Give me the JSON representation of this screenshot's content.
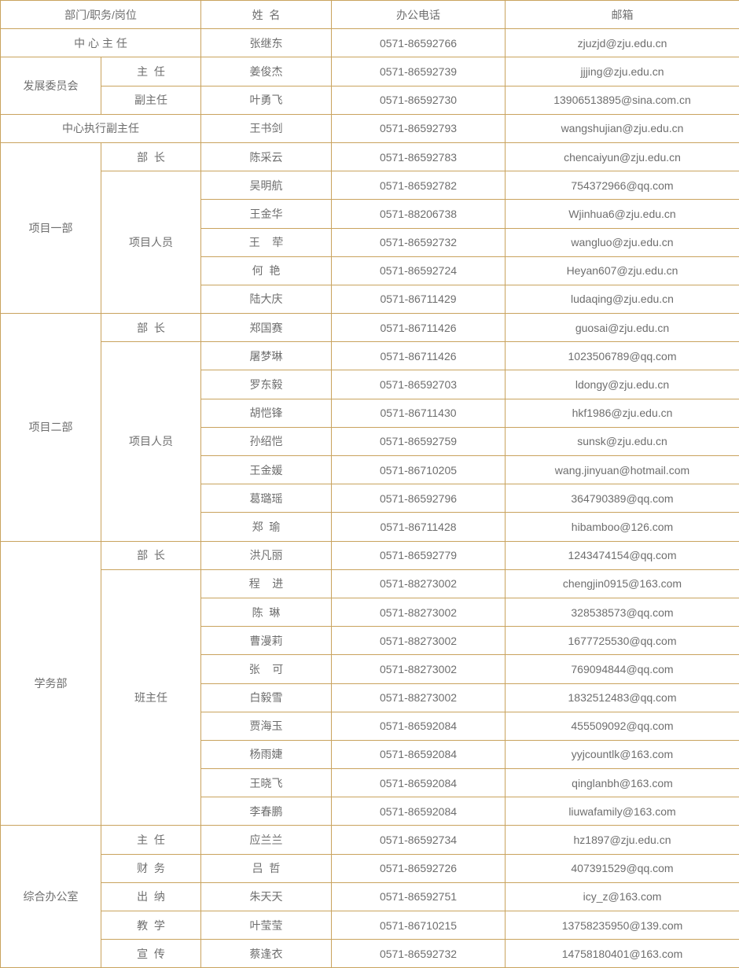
{
  "colors": {
    "border": "#c9a35e",
    "text": "#6e6e6e"
  },
  "header": [
    "部门/职务/岗位",
    "姓  名",
    "办公电话",
    "邮箱"
  ],
  "rows": [
    {
      "dept": "中 心 主 任",
      "merged": true,
      "dept_rows": 1,
      "name": "张继东",
      "phone": "0571-86592766",
      "email": "zjuzjd@zju.edu.cn"
    },
    {
      "dept": "发展委员会",
      "dept_rows": 2,
      "role": "主  任",
      "role_rows": 1,
      "name": "姜俊杰",
      "phone": "0571-86592739",
      "email": "jjjing@zju.edu.cn"
    },
    {
      "role": "副主任",
      "role_rows": 1,
      "name": "叶勇飞",
      "phone": "0571-86592730",
      "email": "13906513895@sina.com.cn"
    },
    {
      "dept": "中心执行副主任",
      "merged": true,
      "dept_rows": 1,
      "name": "王书剑",
      "phone": "0571-86592793",
      "email": "wangshujian@zju.edu.cn"
    },
    {
      "dept": "项目一部",
      "dept_rows": 6,
      "role": "部  长",
      "role_rows": 1,
      "name": "陈采云",
      "phone": "0571-86592783",
      "email": "chencaiyun@zju.edu.cn"
    },
    {
      "role": "项目人员",
      "role_rows": 5,
      "name": "吴明航",
      "phone": "0571-86592782",
      "email": "754372966@qq.com"
    },
    {
      "name": "王金华",
      "phone": "0571-88206738",
      "email": "Wjinhua6@zju.edu.cn"
    },
    {
      "name": "王    荦",
      "phone": "0571-86592732",
      "email": "wangluo@zju.edu.cn"
    },
    {
      "name": "何  艳",
      "phone": "0571-86592724",
      "email": "Heyan607@zju.edu.cn"
    },
    {
      "name": "陆大庆",
      "phone": "0571-86711429",
      "email": "ludaqing@zju.edu.cn"
    },
    {
      "dept": "项目二部",
      "dept_rows": 8,
      "role": "部  长",
      "role_rows": 1,
      "name": "郑国赛",
      "phone": "0571-86711426",
      "email": "guosai@zju.edu.cn"
    },
    {
      "role": "项目人员",
      "role_rows": 7,
      "name": "屠梦琳",
      "phone": "0571-86711426",
      "email": "1023506789@qq.com"
    },
    {
      "name": "罗东毅",
      "phone": "0571-86592703",
      "email": "ldongy@zju.edu.cn"
    },
    {
      "name": "胡恺锋",
      "phone": "0571-86711430",
      "email": "hkf1986@zju.edu.cn"
    },
    {
      "name": "孙绍恺",
      "phone": "0571-86592759",
      "email": "sunsk@zju.edu.cn"
    },
    {
      "name": "王金媛",
      "phone": "0571-86710205",
      "email": "wang.jinyuan@hotmail.com"
    },
    {
      "name": "葛璐瑶",
      "phone": "0571-86592796",
      "email": "364790389@qq.com"
    },
    {
      "name": "郑  瑜",
      "phone": "0571-86711428",
      "email": "hibamboo@126.com"
    },
    {
      "dept": "学务部",
      "dept_rows": 10,
      "role": "部  长",
      "role_rows": 1,
      "name": "洪凡丽",
      "phone": "0571-86592779",
      "email": "1243474154@qq.com"
    },
    {
      "role": "班主任",
      "role_rows": 9,
      "name": "程    进",
      "phone": "0571-88273002",
      "email": "chengjin0915@163.com"
    },
    {
      "name": "陈  琳",
      "phone": "0571-88273002",
      "email": "328538573@qq.com"
    },
    {
      "name": "曹漫莉",
      "phone": "0571-88273002",
      "email": "1677725530@qq.com"
    },
    {
      "name": "张    可",
      "phone": "0571-88273002",
      "email": "769094844@qq.com"
    },
    {
      "name": "白毅雪",
      "phone": "0571-88273002",
      "email": "1832512483@qq.com"
    },
    {
      "name": "贾海玉",
      "phone": "0571-86592084",
      "email": "455509092@qq.com"
    },
    {
      "name": "杨雨婕",
      "phone": "0571-86592084",
      "email": "yyjcountlk@163.com"
    },
    {
      "name": "王晓飞",
      "phone": "0571-86592084",
      "email": "qinglanbh@163.com"
    },
    {
      "name": "李春鹏",
      "phone": "0571-86592084",
      "email": "liuwafamily@163.com"
    },
    {
      "dept": "综合办公室",
      "dept_rows": 5,
      "role": "主  任",
      "role_rows": 1,
      "name": "应兰兰",
      "phone": "0571-86592734",
      "email": "hz1897@zju.edu.cn"
    },
    {
      "role": "财  务",
      "role_rows": 1,
      "name": "吕  哲",
      "phone": "0571-86592726",
      "email": "407391529@qq.com"
    },
    {
      "role": "出  纳",
      "role_rows": 1,
      "name": "朱天天",
      "phone": "0571-86592751",
      "email": "icy_z@163.com"
    },
    {
      "role": "教  学",
      "role_rows": 1,
      "name": "叶莹莹",
      "phone": "0571-86710215",
      "email": "13758235950@139.com"
    },
    {
      "role": "宣  传",
      "role_rows": 1,
      "name": "蔡逢衣",
      "phone": "0571-86592732",
      "email": "14758180401@163.com"
    }
  ]
}
